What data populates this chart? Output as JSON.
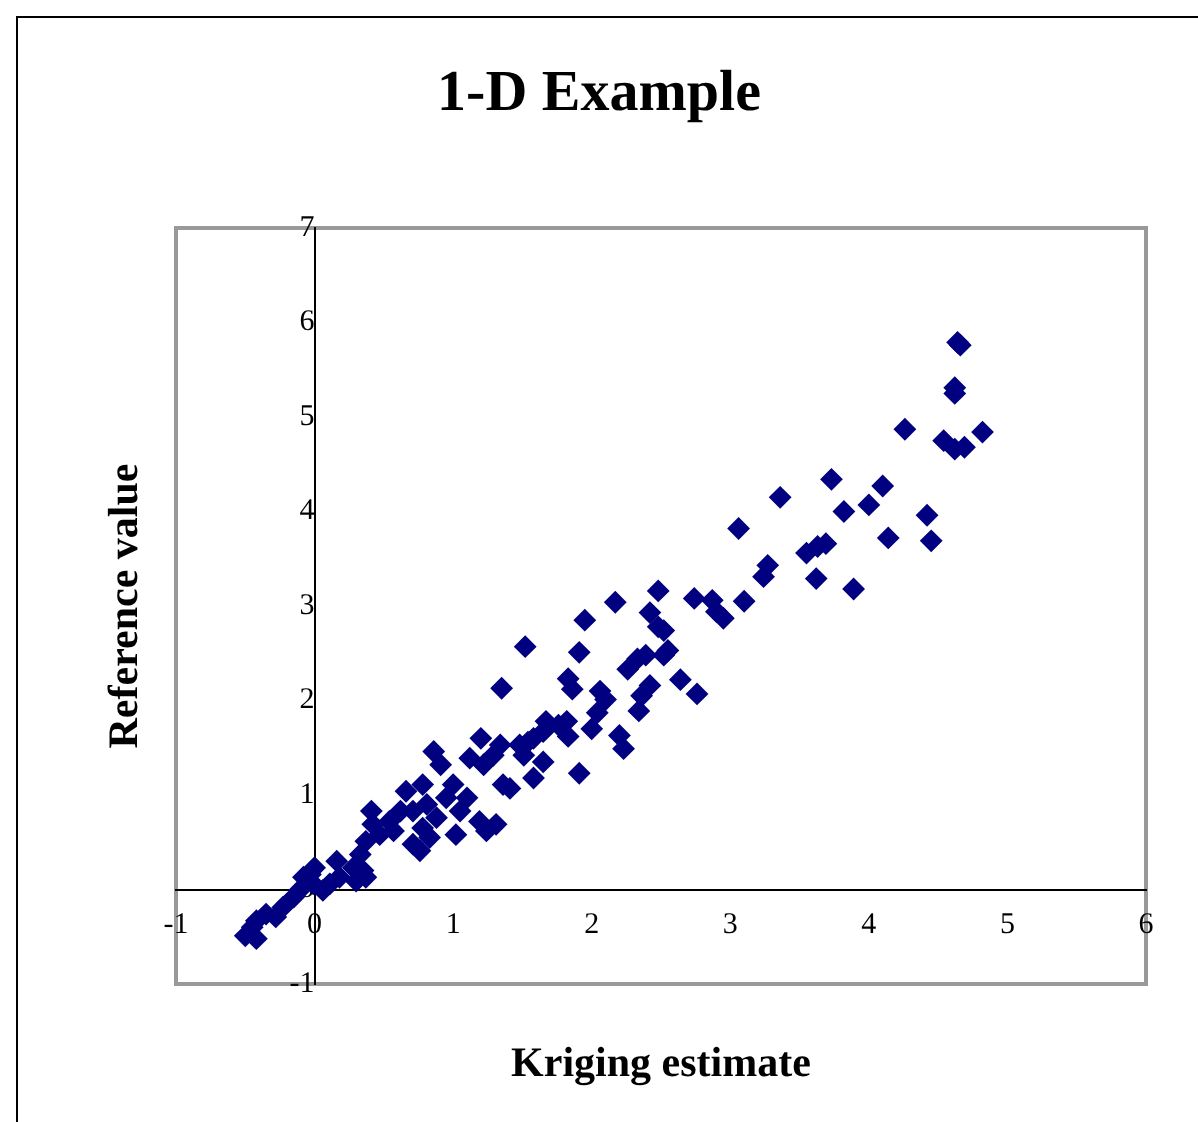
{
  "chart_data": {
    "type": "scatter",
    "title": "1-D Example",
    "xlabel": "Kriging estimate",
    "ylabel": "Reference value",
    "xlim": [
      -1,
      6
    ],
    "ylim": [
      -1,
      7
    ],
    "xticks": [
      -1,
      0,
      1,
      2,
      3,
      4,
      5,
      6
    ],
    "yticks": [
      -1,
      0,
      1,
      2,
      3,
      4,
      5,
      6,
      7
    ],
    "grid": false,
    "legend": false,
    "marker": "diamond",
    "series": [
      {
        "color": "#000080",
        "x": [
          4.64,
          4.66,
          4.62,
          4.62,
          4.82,
          4.26,
          4.54,
          4.62,
          4.69,
          3.73,
          3.36,
          4.0,
          4.1,
          3.82,
          4.42,
          4.45,
          4.14,
          3.55,
          3.63,
          3.69,
          3.62,
          3.89,
          3.06,
          3.27,
          3.24,
          3.1,
          2.74,
          2.87,
          2.9,
          2.95,
          2.64,
          2.76,
          2.48,
          2.42,
          2.48,
          2.52,
          2.55,
          2.52,
          2.17,
          1.95,
          1.91,
          1.52,
          1.35,
          1.83,
          1.86,
          2.26,
          2.33,
          2.39,
          2.42,
          2.36,
          2.34,
          2.06,
          2.1,
          2.04,
          2.0,
          2.2,
          2.23,
          1.91,
          1.82,
          1.76,
          1.83,
          1.67,
          1.65,
          1.58,
          1.48,
          1.54,
          1.51,
          1.65,
          1.58,
          1.36,
          1.41,
          1.2,
          1.29,
          1.34,
          1.12,
          1.22,
          1.19,
          1.24,
          1.31,
          1.02,
          0.86,
          0.91,
          0.66,
          0.78,
          1.0,
          1.1,
          0.95,
          1.05,
          0.81,
          0.71,
          0.88,
          0.78,
          0.71,
          0.76,
          0.83,
          0.62,
          0.54,
          0.47,
          0.57,
          0.41,
          0.42,
          0.37,
          0.33,
          0.28,
          0.35,
          0.37,
          0.3,
          0.16,
          0.18,
          0.11,
          0.06,
          0,
          -0.03,
          -0.08,
          -0.01,
          -0.11,
          -0.15,
          -0.23,
          -0.28,
          -0.35,
          -0.42,
          -0.45,
          -0.5,
          -0.42
        ],
        "values": [
          5.79,
          5.76,
          5.31,
          5.25,
          4.84,
          4.87,
          4.75,
          4.66,
          4.68,
          4.34,
          4.15,
          4.07,
          4.27,
          4.0,
          3.96,
          3.69,
          3.72,
          3.56,
          3.63,
          3.66,
          3.29,
          3.18,
          3.82,
          3.43,
          3.31,
          3.05,
          3.08,
          3.06,
          2.94,
          2.87,
          2.22,
          2.07,
          3.16,
          2.93,
          2.78,
          2.74,
          2.53,
          2.48,
          3.04,
          2.85,
          2.51,
          2.57,
          2.13,
          2.23,
          2.12,
          2.33,
          2.44,
          2.48,
          2.16,
          2.05,
          1.89,
          2.1,
          2.01,
          1.87,
          1.7,
          1.63,
          1.49,
          1.23,
          1.78,
          1.74,
          1.62,
          1.78,
          1.67,
          1.6,
          1.53,
          1.56,
          1.42,
          1.35,
          1.18,
          1.11,
          1.07,
          1.6,
          1.42,
          1.53,
          1.39,
          1.32,
          0.72,
          0.62,
          0.69,
          0.58,
          1.46,
          1.32,
          1.04,
          1.11,
          1.11,
          0.97,
          0.97,
          0.83,
          0.9,
          0.83,
          0.76,
          0.65,
          0.48,
          0.41,
          0.55,
          0.83,
          0.72,
          0.58,
          0.62,
          0.83,
          0.69,
          0.51,
          0.37,
          0.23,
          0.2,
          0.13,
          0.09,
          0.3,
          0.13,
          0.06,
          -0.01,
          0.23,
          0.16,
          0.13,
          0.06,
          -0.01,
          -0.08,
          -0.19,
          -0.29,
          -0.26,
          -0.33,
          -0.4,
          -0.49,
          -0.52
        ]
      }
    ]
  }
}
